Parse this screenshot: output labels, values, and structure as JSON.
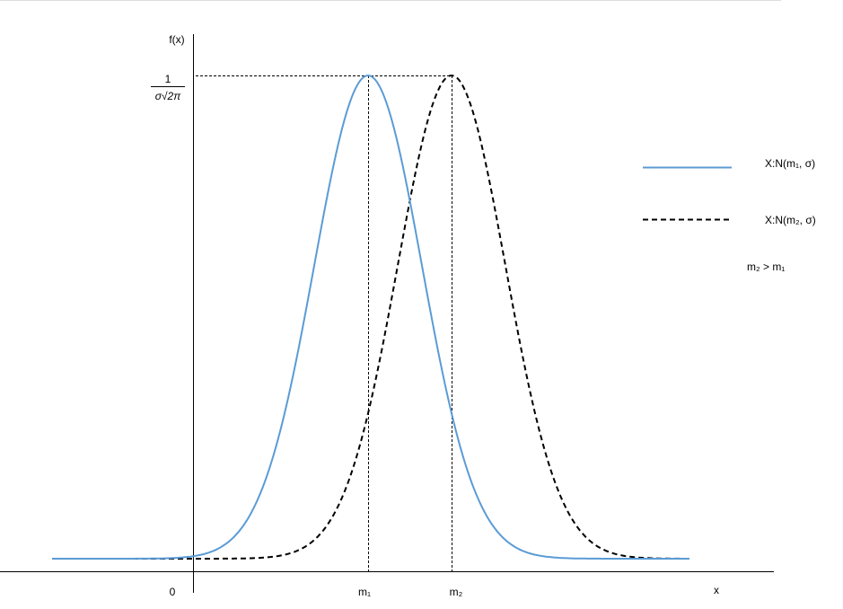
{
  "axes": {
    "y_label": "f(x)",
    "peak_numerator": "1",
    "peak_denominator": "σ√2π",
    "origin": "0",
    "x_label": "x",
    "x_ticks": [
      "m₁",
      "m₂"
    ]
  },
  "legend": {
    "items": [
      {
        "label": "X:N(m₁, σ)"
      },
      {
        "label": "X:N(m₂, σ)"
      }
    ]
  },
  "note": "m₂ > m₁"
}
